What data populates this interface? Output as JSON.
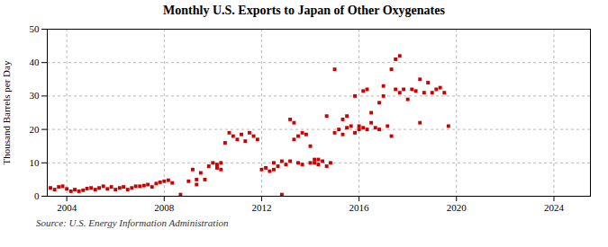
{
  "chart_data": {
    "type": "scatter",
    "title": "Monthly U.S. Exports to Japan of Other Oxygenates",
    "ylabel": "Thousand Barrels per Day",
    "source": "Source: U.S. Energy Information Administration",
    "x": [
      2003.33,
      2003.5,
      2003.67,
      2003.83,
      2004.0,
      2004.17,
      2004.33,
      2004.5,
      2004.67,
      2004.83,
      2005.0,
      2005.17,
      2005.33,
      2005.5,
      2005.67,
      2005.83,
      2006.0,
      2006.17,
      2006.33,
      2006.5,
      2006.67,
      2006.83,
      2007.0,
      2007.17,
      2007.33,
      2007.5,
      2007.67,
      2007.83,
      2008.0,
      2008.17,
      2008.33,
      2008.67,
      2009.0,
      2009.17,
      2009.33,
      2009.5,
      2009.67,
      2009.83,
      2010.0,
      2010.17,
      2010.33,
      2010.5,
      2010.67,
      2010.83,
      2011.0,
      2011.17,
      2011.33,
      2011.5,
      2011.67,
      2011.83,
      2012.0,
      2012.17,
      2012.33,
      2012.5,
      2012.67,
      2012.83,
      2013.0,
      2013.17,
      2013.33,
      2013.5,
      2013.67,
      2013.83,
      2014.0,
      2014.17,
      2014.33,
      2014.5,
      2014.67,
      2014.83,
      2015.0,
      2015.17,
      2015.33,
      2015.5,
      2015.67,
      2015.83,
      2016.0,
      2016.17,
      2016.33,
      2016.5,
      2016.67,
      2016.83,
      2017.0,
      2017.17,
      2017.33,
      2017.5,
      2017.67,
      2017.83,
      2018.0,
      2018.17,
      2018.33,
      2018.5,
      2018.67,
      2018.83,
      2019.0,
      2019.17,
      2019.33,
      2019.5,
      2019.67,
      2015.0,
      2016.0,
      2016.5,
      2016.83,
      2017.0,
      2017.33,
      2017.5,
      2017.67,
      2018.5,
      2013.17,
      2013.33,
      2014.0,
      2014.67,
      2015.33,
      2015.5,
      2015.83,
      2016.17,
      2016.33,
      2012.5,
      2012.83,
      2013.5,
      2013.67,
      2014.17,
      2014.33,
      2009.33,
      2010.17,
      2010.33
    ],
    "values": [
      2.5,
      2.0,
      2.8,
      3.0,
      2.2,
      1.5,
      2.0,
      1.5,
      1.8,
      2.3,
      2.5,
      2.0,
      2.5,
      3.0,
      2.2,
      2.8,
      2.0,
      2.5,
      2.8,
      2.0,
      2.5,
      3.0,
      3.0,
      3.2,
      3.5,
      2.8,
      3.8,
      4.2,
      4.5,
      4.8,
      4.0,
      0.5,
      4.5,
      8.0,
      3.5,
      7.0,
      5.0,
      9.0,
      10.0,
      8.5,
      8.0,
      16.0,
      19.0,
      18.0,
      17.0,
      18.5,
      16.5,
      19.0,
      18.0,
      17.0,
      8.0,
      8.5,
      7.5,
      8.0,
      9.0,
      0.5,
      9.5,
      10.5,
      17.0,
      18.0,
      19.0,
      18.5,
      10.0,
      11.0,
      9.5,
      10.5,
      9.0,
      10.0,
      19.0,
      20.0,
      18.5,
      20.5,
      21.0,
      19.0,
      20.0,
      20.5,
      20.0,
      22.0,
      20.5,
      20.0,
      30.0,
      21.0,
      18.0,
      32.0,
      31.0,
      32.0,
      29.0,
      32.0,
      31.5,
      35.0,
      31.0,
      34.0,
      31.0,
      32.0,
      32.5,
      31.0,
      21.0,
      38.0,
      21.0,
      25.0,
      28.0,
      33.0,
      38.0,
      41.0,
      42.0,
      22.0,
      23.0,
      22.0,
      15.0,
      24.0,
      23.0,
      24.0,
      30.0,
      31.5,
      32.0,
      10.0,
      10.5,
      10.0,
      9.5,
      10.0,
      11.0,
      5.0,
      9.5,
      10.0
    ],
    "color": "#cc0000",
    "marker": "square",
    "xlim": [
      2003.2,
      2025.5
    ],
    "xticks": [
      2004,
      2008,
      2012,
      2016,
      2020,
      2024
    ],
    "ylim": [
      0,
      50
    ],
    "yticks": [
      0,
      10,
      20,
      30,
      40,
      50
    ],
    "grid": true
  }
}
